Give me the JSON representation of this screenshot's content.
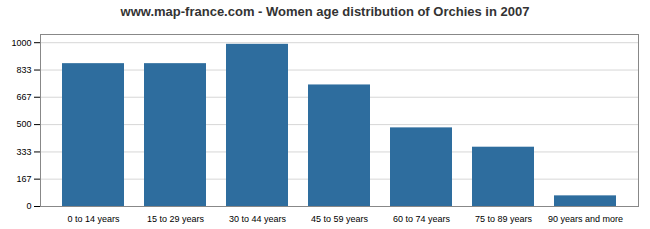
{
  "chart_data": {
    "type": "bar",
    "title": "www.map-france.com - Women age distribution of Orchies in 2007",
    "categories": [
      "0 to 14 years",
      "15 to 29 years",
      "30 to 44 years",
      "45 to 59 years",
      "60 to 74 years",
      "75 to 89 years",
      "90 years and more"
    ],
    "values": [
      872,
      872,
      990,
      742,
      480,
      362,
      65
    ],
    "color": "#2e6d9e",
    "ylim": [
      0,
      1050
    ],
    "yticks": [
      0,
      167,
      333,
      500,
      667,
      833,
      1000
    ],
    "grid": true
  }
}
